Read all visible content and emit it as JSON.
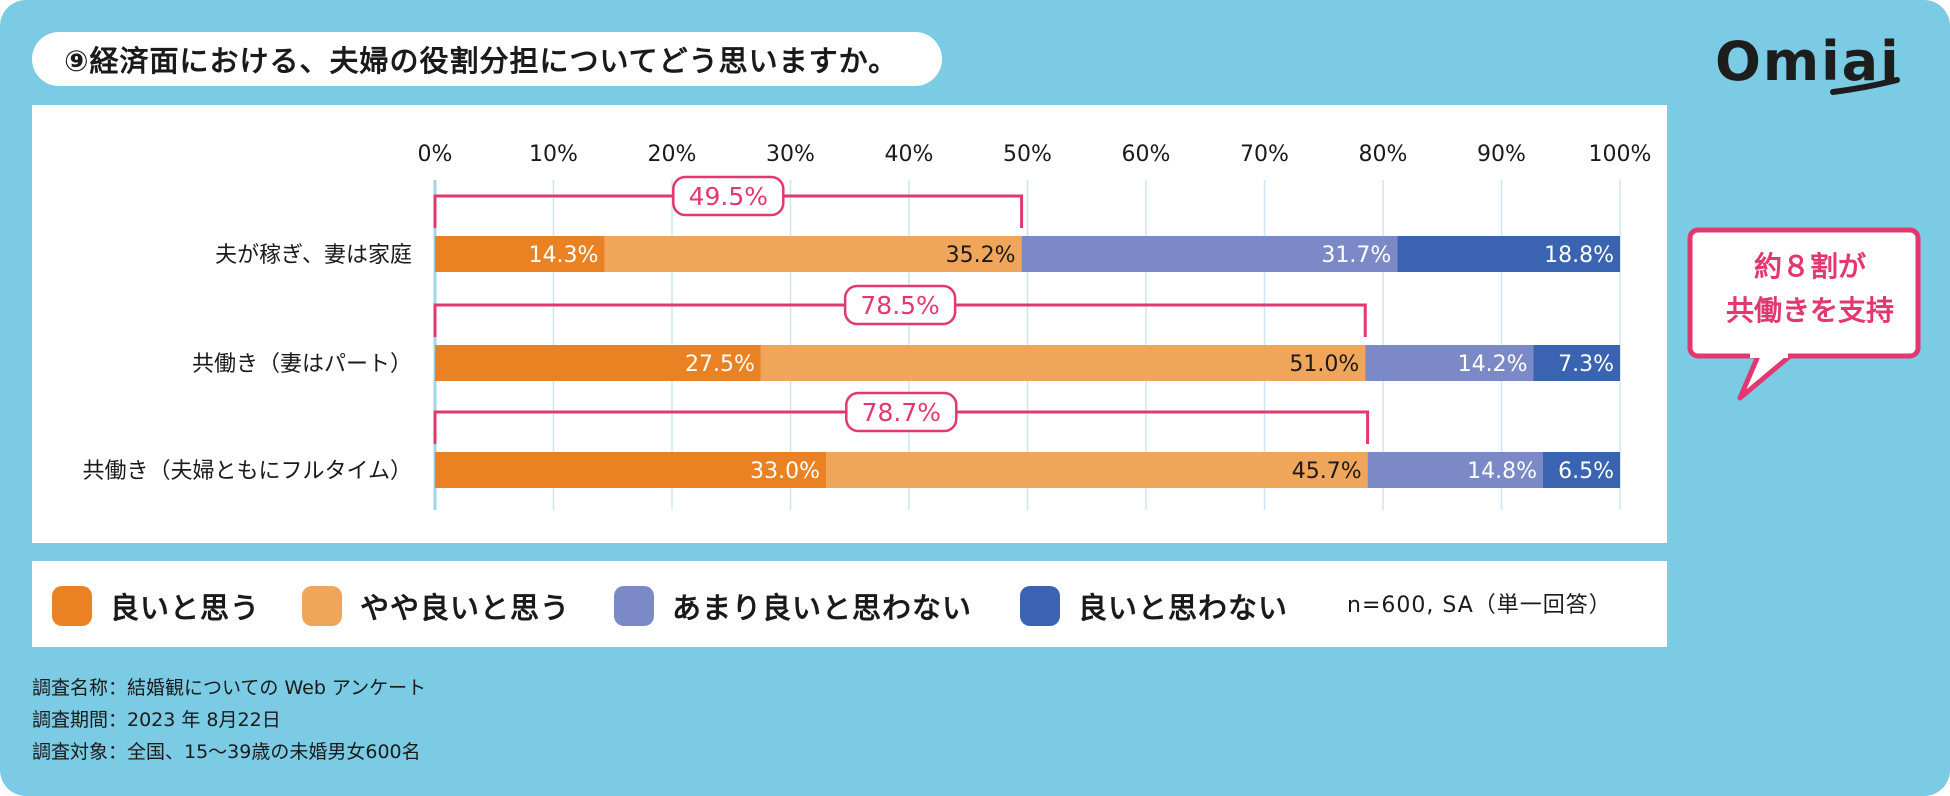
{
  "title": "⑨経済面における、夫婦の役割分担についてどう思いますか。",
  "logo": "Omiai",
  "callout": [
    "約８割が",
    "共働きを支持"
  ],
  "colors": {
    "background": "#7ccbe4",
    "good": "#ea8224",
    "somewhat_good": "#f0a65a",
    "not_really": "#7b8ac6",
    "not_good": "#3a64b2",
    "accent": "#e3386f"
  },
  "chart_data": {
    "type": "bar",
    "orientation": "horizontal",
    "stacked": true,
    "percent_scale": true,
    "xlim": [
      0,
      100
    ],
    "ticks": [
      "0%",
      "10%",
      "20%",
      "30%",
      "40%",
      "50%",
      "60%",
      "70%",
      "80%",
      "90%",
      "100%"
    ],
    "categories": [
      "夫が稼ぎ、妻は家庭",
      "共働き（妻はパート）",
      "共働き（夫婦ともにフルタイム）"
    ],
    "series": [
      {
        "name": "良いと思う",
        "values": [
          14.3,
          27.5,
          33.0
        ],
        "labels": [
          "14.3%",
          "27.5%",
          "33.0%"
        ]
      },
      {
        "name": "やや良いと思う",
        "values": [
          35.2,
          51.0,
          45.7
        ],
        "labels": [
          "35.2%",
          "51.0%",
          "45.7%"
        ]
      },
      {
        "name": "あまり良いと思わない",
        "values": [
          31.7,
          14.2,
          14.8
        ],
        "labels": [
          "31.7%",
          "14.2%",
          "14.8%"
        ]
      },
      {
        "name": "良いと思わない",
        "values": [
          18.8,
          7.3,
          6.5
        ],
        "labels": [
          "18.8%",
          "7.3%",
          "6.5%"
        ]
      }
    ],
    "bracket_totals": [
      49.5,
      78.5,
      78.7
    ],
    "bracket_labels": [
      "49.5%",
      "78.5%",
      "78.7%"
    ]
  },
  "legend_note": "n=600, SA（単一回答）",
  "footer": [
    "調査名称：結婚観についての Web アンケート",
    "調査期間：2023 年 8月22日",
    "調査対象：全国、15～39歳の未婚男女600名"
  ]
}
